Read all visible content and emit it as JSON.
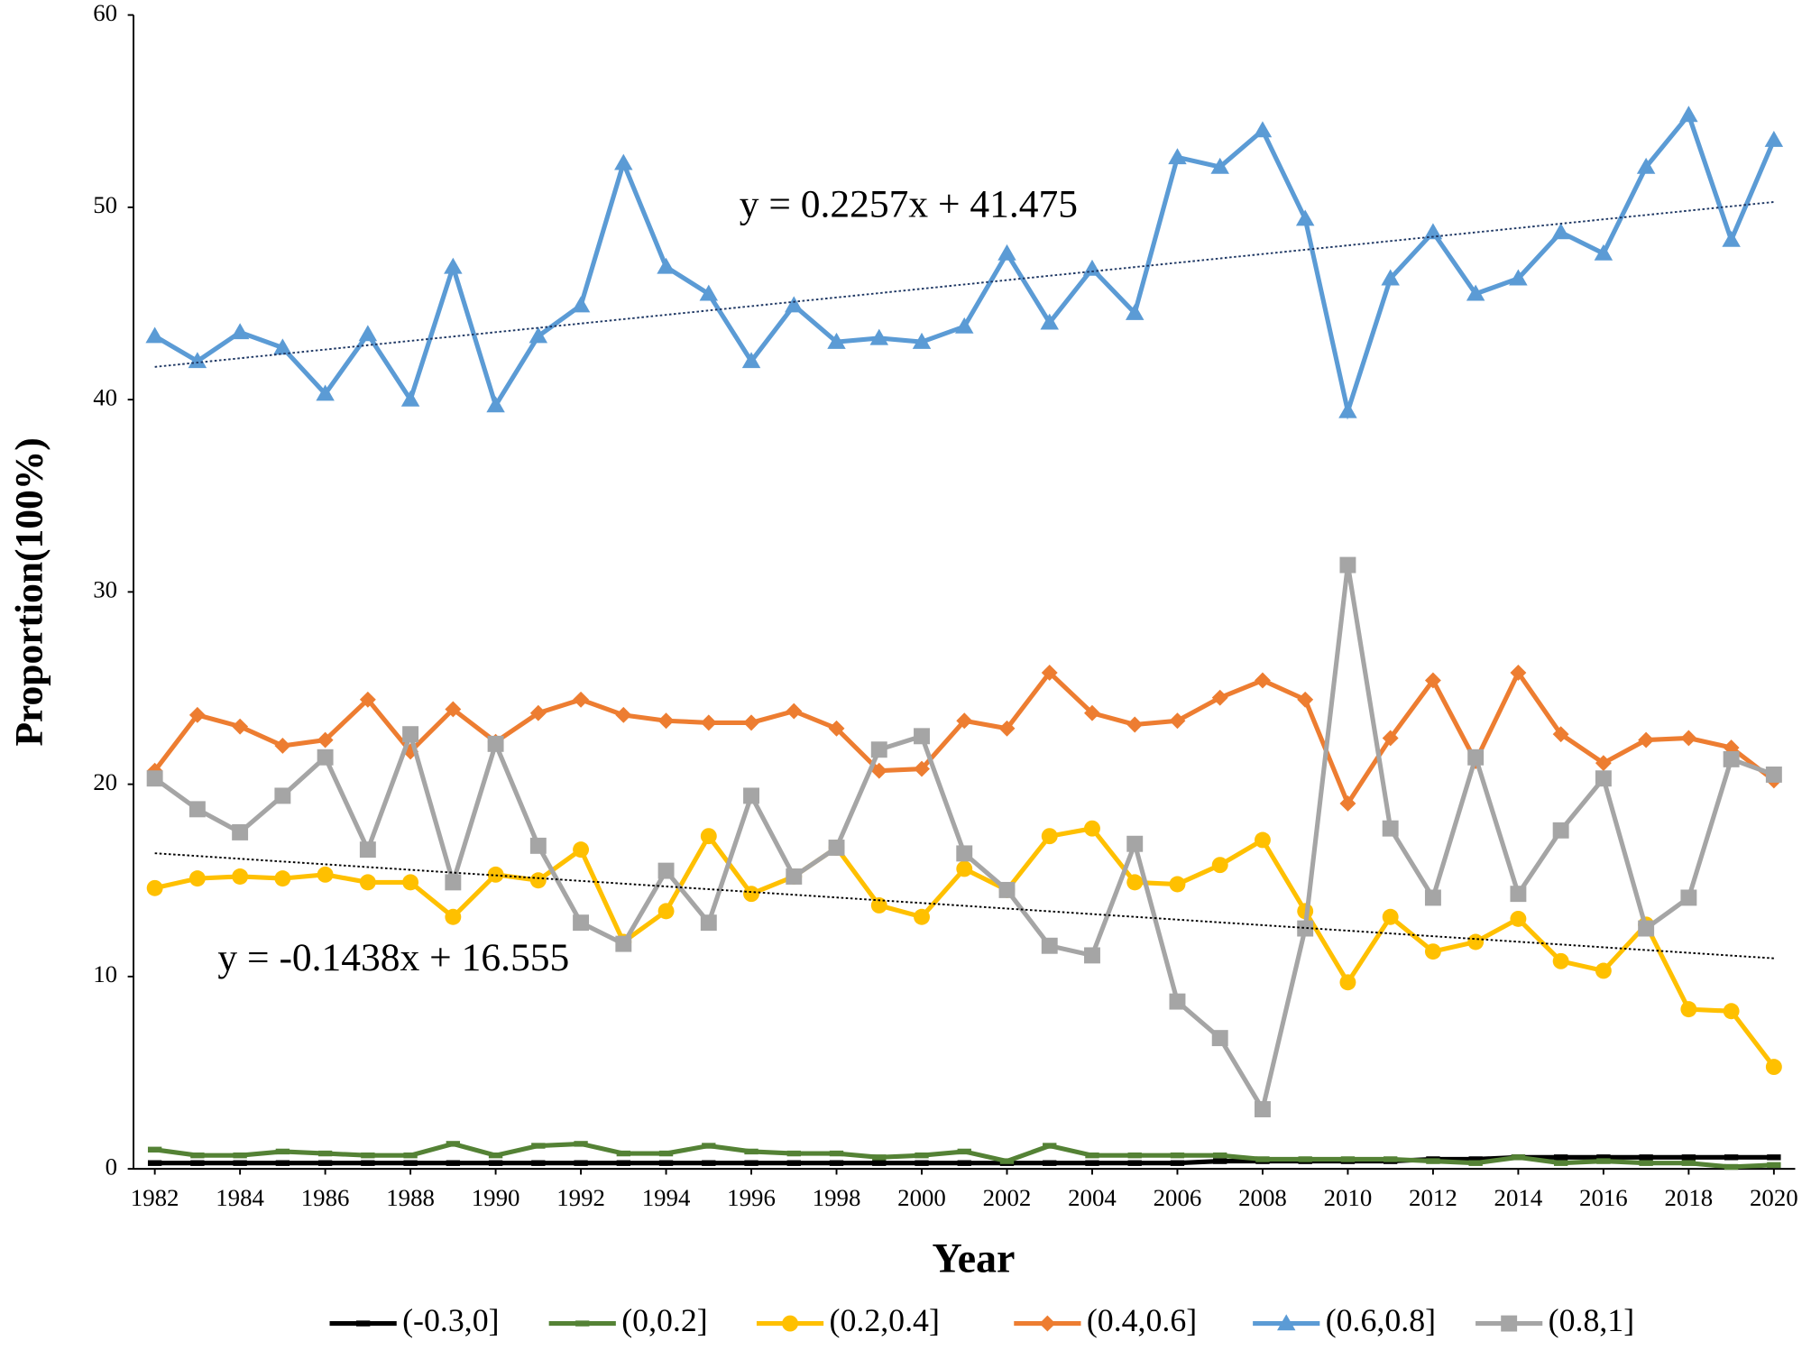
{
  "chart_data": {
    "type": "line",
    "x_label": "Year",
    "y_label": "Proportion(100%)",
    "x": [
      1982,
      1983,
      1984,
      1985,
      1986,
      1987,
      1988,
      1989,
      1990,
      1991,
      1992,
      1993,
      1994,
      1995,
      1996,
      1997,
      1998,
      1999,
      2000,
      2001,
      2002,
      2003,
      2004,
      2005,
      2006,
      2007,
      2008,
      2009,
      2010,
      2011,
      2012,
      2013,
      2014,
      2015,
      2016,
      2017,
      2018,
      2019,
      2020
    ],
    "xlim": [
      1981.5,
      2020.5
    ],
    "xticks": [
      1982,
      1984,
      1986,
      1988,
      1990,
      1992,
      1994,
      1996,
      1998,
      2000,
      2002,
      2004,
      2006,
      2008,
      2010,
      2012,
      2014,
      2016,
      2018,
      2020
    ],
    "ylim": [
      0,
      60
    ],
    "yticks": [
      0,
      10,
      20,
      30,
      40,
      50,
      60
    ],
    "grid": false,
    "legend": "bottom",
    "series": [
      {
        "name": "(-0.3,0]",
        "color": "#000000",
        "marker": "dash",
        "values": [
          0.3,
          0.3,
          0.3,
          0.3,
          0.3,
          0.3,
          0.3,
          0.3,
          0.3,
          0.3,
          0.3,
          0.3,
          0.3,
          0.3,
          0.3,
          0.3,
          0.3,
          0.3,
          0.3,
          0.3,
          0.3,
          0.3,
          0.3,
          0.3,
          0.3,
          0.4,
          0.4,
          0.4,
          0.4,
          0.4,
          0.5,
          0.5,
          0.6,
          0.6,
          0.6,
          0.6,
          0.6,
          0.6,
          0.6
        ]
      },
      {
        "name": "(0,0.2]",
        "color": "#548235",
        "marker": "dash",
        "values": [
          1.0,
          0.7,
          0.7,
          0.9,
          0.8,
          0.7,
          0.7,
          1.3,
          0.7,
          1.2,
          1.3,
          0.8,
          0.8,
          1.2,
          0.9,
          0.8,
          0.8,
          0.6,
          0.7,
          0.9,
          0.4,
          1.2,
          0.7,
          0.7,
          0.7,
          0.7,
          0.5,
          0.5,
          0.5,
          0.5,
          0.4,
          0.3,
          0.6,
          0.3,
          0.4,
          0.3,
          0.3,
          0.1,
          0.2
        ]
      },
      {
        "name": "(0.2,0.4]",
        "color": "#ffc000",
        "marker": "circle",
        "values": [
          14.6,
          15.1,
          15.2,
          15.1,
          15.3,
          14.9,
          14.9,
          13.1,
          15.3,
          15.0,
          16.6,
          11.8,
          13.4,
          17.3,
          14.3,
          15.2,
          16.7,
          13.7,
          13.1,
          15.6,
          14.5,
          17.3,
          17.7,
          14.9,
          14.8,
          15.8,
          17.1,
          13.4,
          9.7,
          13.1,
          11.3,
          11.8,
          13.0,
          10.8,
          10.3,
          12.7,
          8.3,
          8.2,
          5.3
        ]
      },
      {
        "name": "(0.4,0.6]",
        "color": "#ed7d31",
        "marker": "diamond",
        "values": [
          20.7,
          23.6,
          23.0,
          22.0,
          22.3,
          24.4,
          21.7,
          23.9,
          22.2,
          23.7,
          24.4,
          23.6,
          23.3,
          23.2,
          23.2,
          23.8,
          22.9,
          20.7,
          20.8,
          23.3,
          22.9,
          25.8,
          23.7,
          23.1,
          23.3,
          24.5,
          25.4,
          24.4,
          19.0,
          22.4,
          25.4,
          21.2,
          25.8,
          22.6,
          21.1,
          22.3,
          22.4,
          21.9,
          20.2
        ]
      },
      {
        "name": "(0.6,0.8]",
        "color": "#5b9bd5",
        "marker": "triangle",
        "values": [
          43.3,
          42.0,
          43.5,
          42.7,
          40.3,
          43.4,
          40.0,
          46.9,
          39.7,
          43.3,
          44.9,
          52.3,
          46.9,
          45.5,
          42.0,
          44.9,
          43.0,
          43.2,
          43.0,
          43.8,
          47.6,
          44.0,
          46.8,
          44.5,
          52.6,
          52.1,
          54.0,
          49.4,
          39.4,
          46.3,
          48.7,
          45.5,
          46.3,
          48.7,
          47.6,
          52.1,
          54.8,
          48.3,
          53.5
        ]
      },
      {
        "name": "(0.8,1]",
        "color": "#a5a5a5",
        "marker": "square",
        "values": [
          20.3,
          18.7,
          17.5,
          19.4,
          21.4,
          16.6,
          22.6,
          14.9,
          22.1,
          16.8,
          12.8,
          11.7,
          15.5,
          12.8,
          19.4,
          15.2,
          16.7,
          21.8,
          22.5,
          16.4,
          14.5,
          11.6,
          11.1,
          16.9,
          8.7,
          6.8,
          3.1,
          12.5,
          31.4,
          17.7,
          14.1,
          21.4,
          14.3,
          17.6,
          20.3,
          12.5,
          14.1,
          21.3,
          20.5
        ]
      }
    ],
    "trendlines": [
      {
        "label": "y = 0.2257x + 41.475",
        "slope": 0.2257,
        "intercept": 41.475,
        "color": "#1f3864"
      },
      {
        "label": "y = -0.1438x + 16.555",
        "slope": -0.1438,
        "intercept": 16.555,
        "color": "#000000"
      }
    ]
  }
}
